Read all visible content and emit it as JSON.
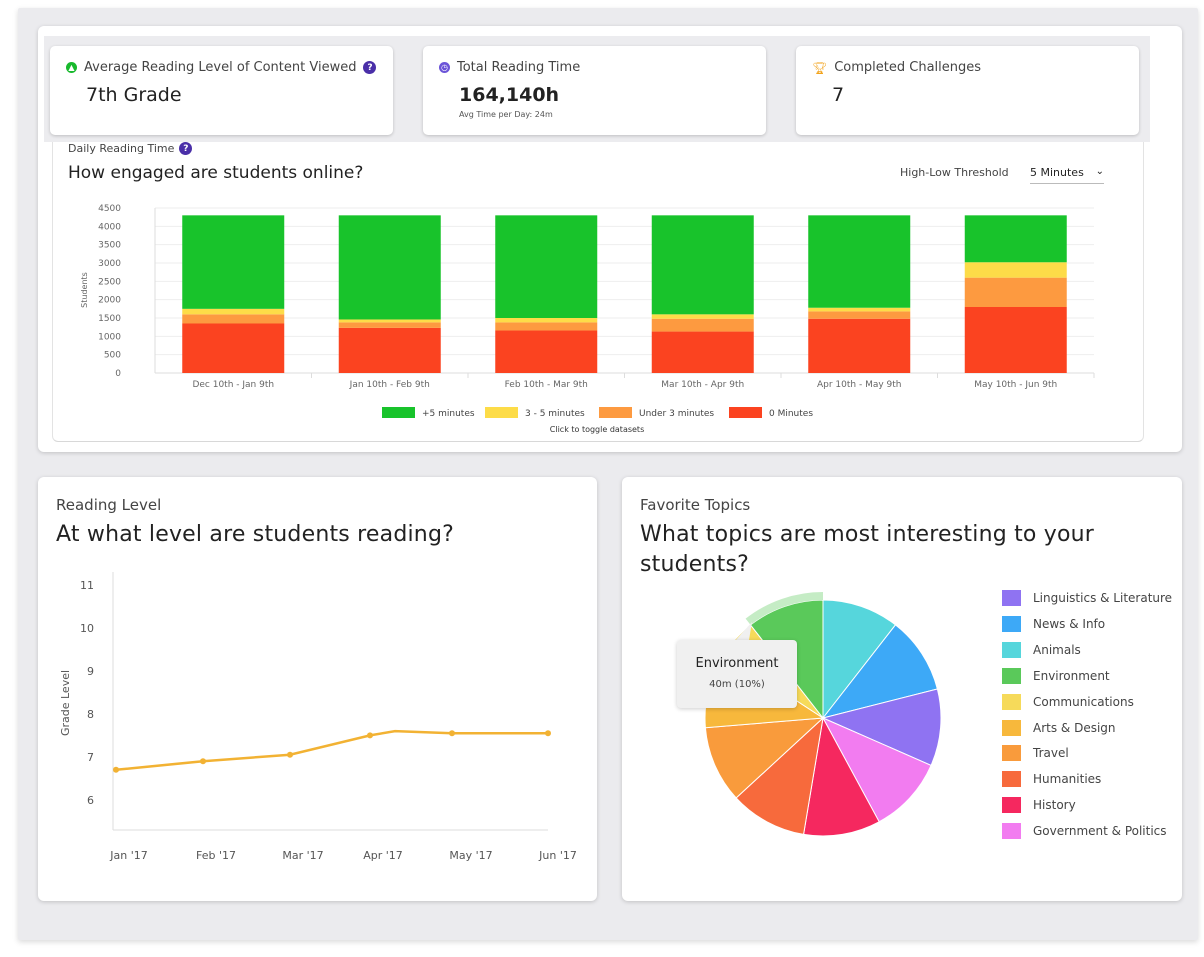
{
  "stats": {
    "reading_level": {
      "title": "Average Reading Level of Content Viewed",
      "value": "7th Grade"
    },
    "reading_time": {
      "title": "Total Reading Time",
      "value": "164,140h",
      "sub": "Avg Time per Day: 24m"
    },
    "challenges": {
      "title": "Completed Challenges",
      "value": "7"
    }
  },
  "daily": {
    "subtitle": "Daily Reading Time",
    "title": "How engaged are students online?",
    "threshold_label": "High-Low Threshold",
    "threshold_value": "5 Minutes",
    "legend_hint": "Click to toggle datasets"
  },
  "reading_level": {
    "subtitle": "Reading Level",
    "title": "At what level are students reading?"
  },
  "topics": {
    "subtitle": "Favorite Topics",
    "title_line1": "What topics are most interesting to your",
    "title_line2": "students?",
    "tooltip": {
      "label": "Environment",
      "value": "40m (10%)"
    }
  },
  "colors": {
    "accent": "#4a2fa8",
    "green": "#18c32b",
    "yellow": "#fddc48",
    "orange": "#fd9a40",
    "red": "#fb4320",
    "line": "#f2b233"
  },
  "chart_data": [
    {
      "type": "bar",
      "stacked": true,
      "categories": [
        "Dec 10th - Jan 9th",
        "Jan 10th - Feb 9th",
        "Feb 10th - Mar 9th",
        "Mar 10th - Apr 9th",
        "Apr 10th - May 9th",
        "May 10th - Jun 9th"
      ],
      "series": [
        {
          "name": "0 Minutes",
          "color": "#fb4320",
          "values": [
            1350,
            1230,
            1160,
            1130,
            1480,
            1800
          ]
        },
        {
          "name": "Under 3 minutes",
          "color": "#fd9a40",
          "values": [
            250,
            150,
            220,
            350,
            200,
            800
          ]
        },
        {
          "name": "3 - 5 minutes",
          "color": "#fddc48",
          "values": [
            150,
            80,
            120,
            120,
            100,
            420
          ]
        },
        {
          "name": "+5 minutes",
          "color": "#18c32b",
          "values": [
            2550,
            2840,
            2800,
            2700,
            2520,
            1280
          ]
        }
      ],
      "legend_order": [
        "+5 minutes",
        "3 - 5 minutes",
        "Under 3 minutes",
        "0 Minutes"
      ],
      "ylabel": "Students",
      "ylim": [
        0,
        4500
      ],
      "yticks": [
        0,
        500,
        1000,
        1500,
        2000,
        2500,
        3000,
        3500,
        4000,
        4500
      ],
      "legend_position": "bottom"
    },
    {
      "type": "line",
      "categories": [
        "Jan '17",
        "Feb '17",
        "Mar '17",
        "Apr '17",
        "May '17",
        "Jun '17"
      ],
      "points": [
        {
          "x": "Jan '17",
          "y": 6.7
        },
        {
          "x": "Feb '17",
          "y": 6.9
        },
        {
          "x": "Mar '17",
          "y": 7.05
        },
        {
          "x": "Apr '17",
          "y": 7.5
        },
        {
          "x": "Apr '17",
          "y": 7.6
        },
        {
          "x": "May '17",
          "y": 7.55
        },
        {
          "x": "Jun '17",
          "y": 7.55
        }
      ],
      "ylabel": "Grade Level",
      "yticks": [
        6,
        7,
        8,
        9,
        10,
        11
      ],
      "ylim": [
        5.3,
        11.3
      ]
    },
    {
      "type": "pie",
      "slices": [
        {
          "label": "Animals",
          "value": 10,
          "color": "#56d6dc"
        },
        {
          "label": "News & Info",
          "value": 10,
          "color": "#3da9f7"
        },
        {
          "label": "Linguistics & Literature",
          "value": 10,
          "color": "#8f73f2"
        },
        {
          "label": "Government & Politics",
          "value": 10,
          "color": "#f27cf0"
        },
        {
          "label": "History",
          "value": 10,
          "color": "#f5285f"
        },
        {
          "label": "Humanities",
          "value": 10,
          "color": "#f76a3c"
        },
        {
          "label": "Travel",
          "value": 10,
          "color": "#f99b3c"
        },
        {
          "label": "Arts & Design",
          "value": 10,
          "color": "#f7b83c"
        },
        {
          "label": "Communications",
          "value": 5,
          "color": "#f6da5a"
        },
        {
          "label": "Environment",
          "value": 10,
          "color": "#5ac95a"
        }
      ],
      "legend_order": [
        "Linguistics & Literature",
        "News & Info",
        "Animals",
        "Environment",
        "Communications",
        "Arts & Design",
        "Travel",
        "Humanities",
        "History",
        "Government & Politics"
      ],
      "legend_position": "right",
      "highlighted": "Environment"
    }
  ]
}
